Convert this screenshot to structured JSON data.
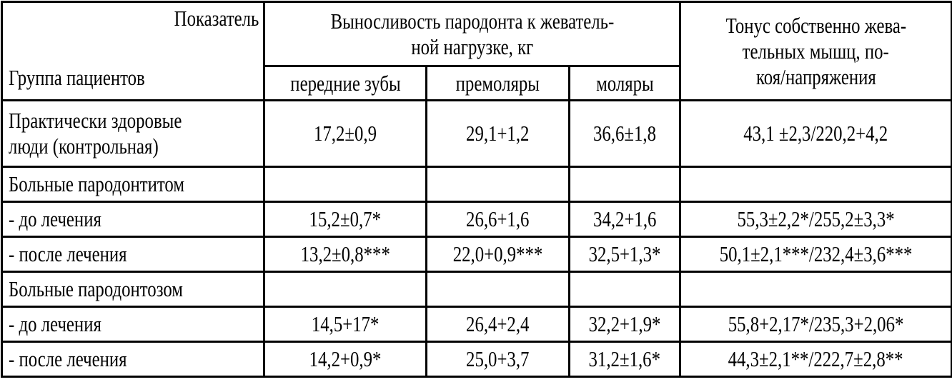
{
  "header": {
    "indicator_label": "Показатель",
    "group_label": "Группа пациентов",
    "endurance_lines": [
      "Выносливость пародонта к жеватель-",
      "ной нагрузке, кг"
    ],
    "tone_lines": [
      "Тонус собственно жева-",
      "тельных мышц, по-",
      "коя/напряжения"
    ],
    "subcolumns": [
      "передние зубы",
      "премоляры",
      "моляры"
    ]
  },
  "rows": [
    {
      "label_lines": [
        "Практически здоровые",
        "люди (контрольная)"
      ],
      "values": [
        "17,2±0,9",
        "29,1+1,2",
        "36,6±1,8",
        "43,1 ±2,3/220,2+4,2"
      ]
    },
    {
      "label_lines": [
        "Больные пародонтитом"
      ],
      "values": [
        "",
        "",
        "",
        ""
      ]
    },
    {
      "label_lines": [
        "- до лечения"
      ],
      "values": [
        "15,2±0,7*",
        "26,6+1,6",
        "34,2+1,6",
        "55,3±2,2*/255,2±3,3*"
      ]
    },
    {
      "label_lines": [
        "- после лечения"
      ],
      "values": [
        "13,2±0,8***",
        "22,0+0,9***",
        "32,5+1,3*",
        "50,1±2,1***/232,4±3,6***"
      ]
    },
    {
      "label_lines": [
        "Больные пародонтозом"
      ],
      "values": [
        "",
        "",
        "",
        ""
      ]
    },
    {
      "label_lines": [
        "- до лечения"
      ],
      "values": [
        "14,5+17*",
        "26,4+2,4",
        "32,2+1,9*",
        "55,8+2,17*/235,3+2,06*"
      ]
    },
    {
      "label_lines": [
        "- после лечения"
      ],
      "values": [
        "14,2+0,9*",
        "25,0+3,7",
        "31,2±1,6*",
        "44,3±2,1**/222,7±2,8**"
      ]
    }
  ]
}
